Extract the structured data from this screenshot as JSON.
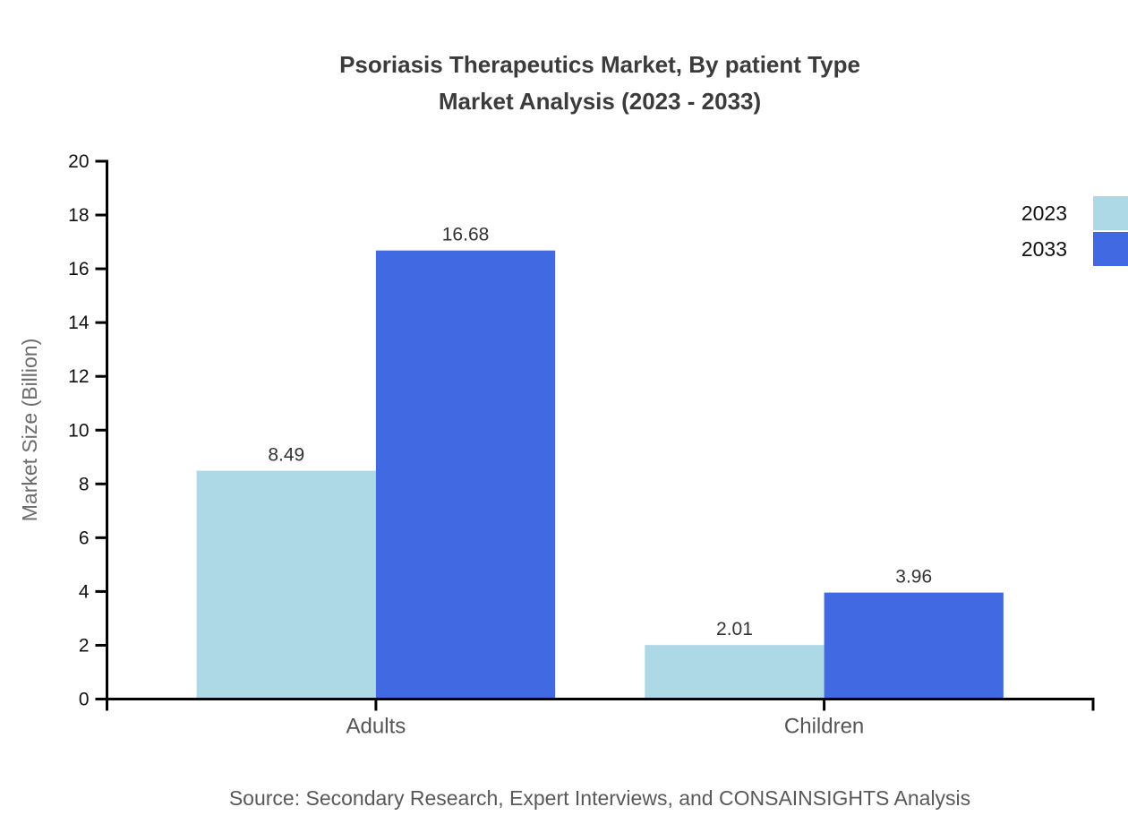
{
  "title": {
    "line1": "Psoriasis Therapeutics Market, By patient Type",
    "line2": "Market Analysis (2023 - 2033)"
  },
  "source": "Source: Secondary Research, Expert Interviews, and CONSAINSIGHTS Analysis",
  "chart_data": {
    "type": "bar",
    "title": "Psoriasis Therapeutics Market, By patient Type Market Analysis (2023 - 2033)",
    "categories": [
      "Adults",
      "Children"
    ],
    "series": [
      {
        "name": "2023",
        "color": "#ADD8E6",
        "values": [
          8.49,
          2.01
        ]
      },
      {
        "name": "2033",
        "color": "#4169E1",
        "values": [
          16.68,
          3.96
        ]
      }
    ],
    "xlabel": "",
    "ylabel": "Market Size (Billion)",
    "ylim": [
      0,
      20
    ],
    "ytick_step": 2,
    "yticks": [
      0,
      2,
      4,
      6,
      8,
      10,
      12,
      14,
      16,
      18,
      20
    ],
    "grid": false,
    "value_labels": true,
    "legend_position": "top-right",
    "colors": {
      "axis": "#000000",
      "tick_label": "#111111",
      "value_label": "#333333",
      "category_label": "#555555",
      "axis_title": "#6b6b6b"
    }
  }
}
